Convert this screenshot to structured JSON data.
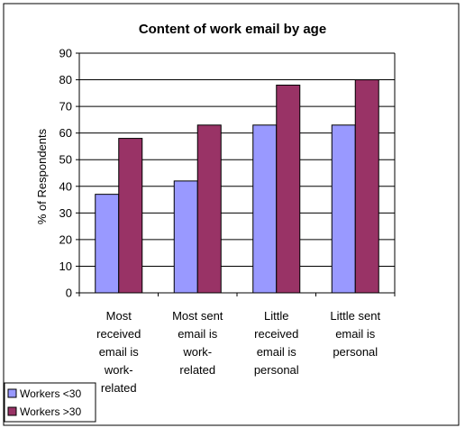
{
  "chart_data": {
    "type": "bar",
    "title": "Content of work email by age",
    "ylabel": "% of Respondents",
    "xlabel": "",
    "ylim": [
      0,
      90
    ],
    "yticks": [
      0,
      10,
      20,
      30,
      40,
      50,
      60,
      70,
      80,
      90
    ],
    "grid": true,
    "legend_position": "bottom-left",
    "categories": [
      [
        "Most",
        "received",
        "email is",
        "work-",
        "related"
      ],
      [
        "Most sent",
        "email is",
        "work-",
        "related"
      ],
      [
        "Little",
        "received",
        "email is",
        "personal"
      ],
      [
        "Little sent",
        "email is",
        "personal"
      ]
    ],
    "series": [
      {
        "name": "Workers <30",
        "color": "#9999ff",
        "values": [
          37,
          42,
          63,
          63
        ]
      },
      {
        "name": "Workers >30",
        "color": "#993366",
        "values": [
          58,
          63,
          78,
          80
        ]
      }
    ]
  }
}
